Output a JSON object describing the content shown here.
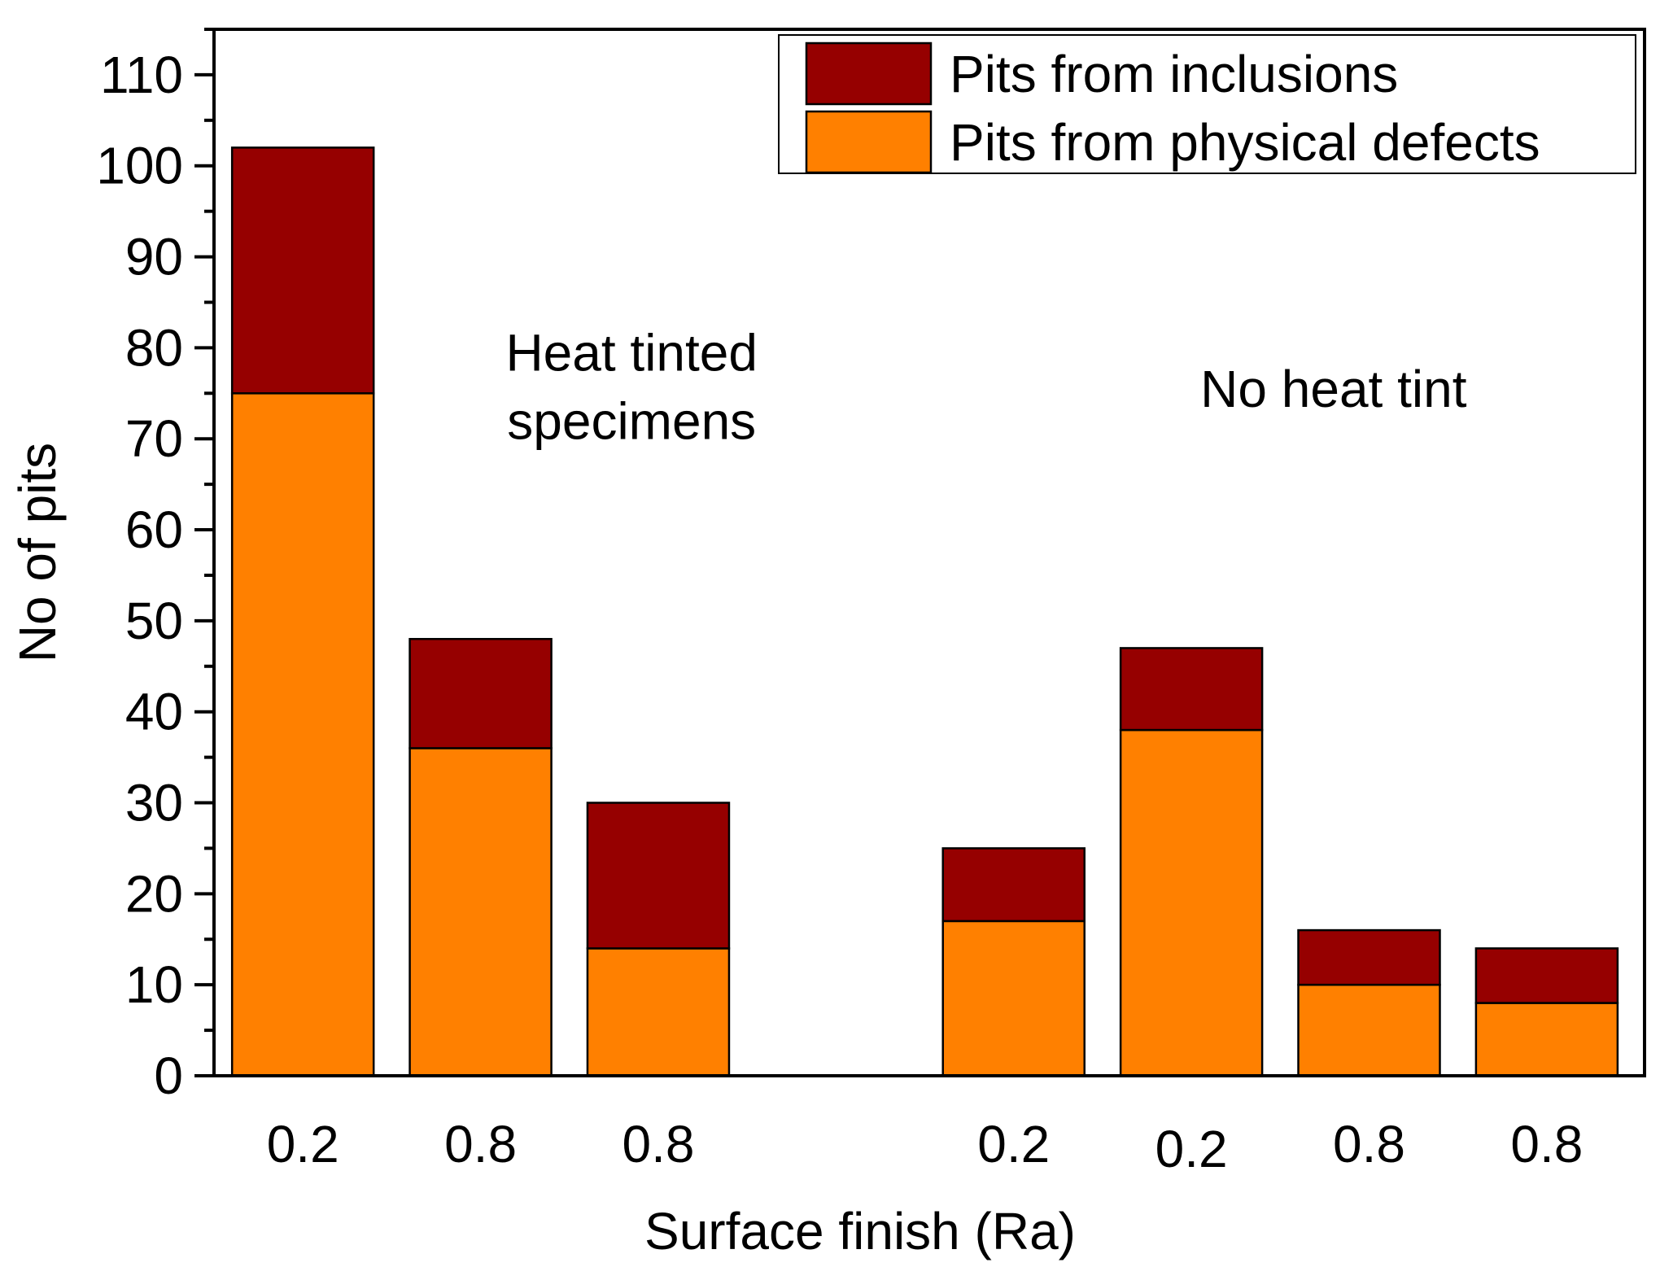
{
  "chart_data": {
    "type": "bar",
    "stacked": true,
    "title": "",
    "xlabel": "Surface finish (Ra)",
    "ylabel": "No of pits",
    "ylim": [
      0,
      115
    ],
    "yticks": [
      0,
      10,
      20,
      30,
      40,
      50,
      60,
      70,
      80,
      90,
      100,
      110
    ],
    "categories": [
      "0.2",
      "0.8",
      "0.8",
      "0.2",
      "0.2",
      "0.8",
      "0.8"
    ],
    "slots": [
      1,
      2,
      3,
      5,
      6,
      7,
      8
    ],
    "xlim": [
      0.5,
      8.55
    ],
    "series": [
      {
        "name": "Pits from physical defects",
        "color": "#FF8000",
        "values": [
          75,
          36,
          14,
          17,
          38,
          10,
          8
        ]
      },
      {
        "name": "Pits from inclusions",
        "color": "#960000",
        "values": [
          27,
          12,
          16,
          8,
          9,
          6,
          6
        ]
      }
    ],
    "legend": {
      "position": "top-right",
      "order": [
        "Pits from inclusions",
        "Pits from physical defects"
      ]
    },
    "annotations": [
      {
        "lines": [
          "Heat tinted",
          "specimens"
        ],
        "x": 2.85,
        "y": 77.5
      },
      {
        "lines": [
          "No heat tint"
        ],
        "x": 6.8,
        "y": 73.5
      }
    ],
    "grid": false
  }
}
